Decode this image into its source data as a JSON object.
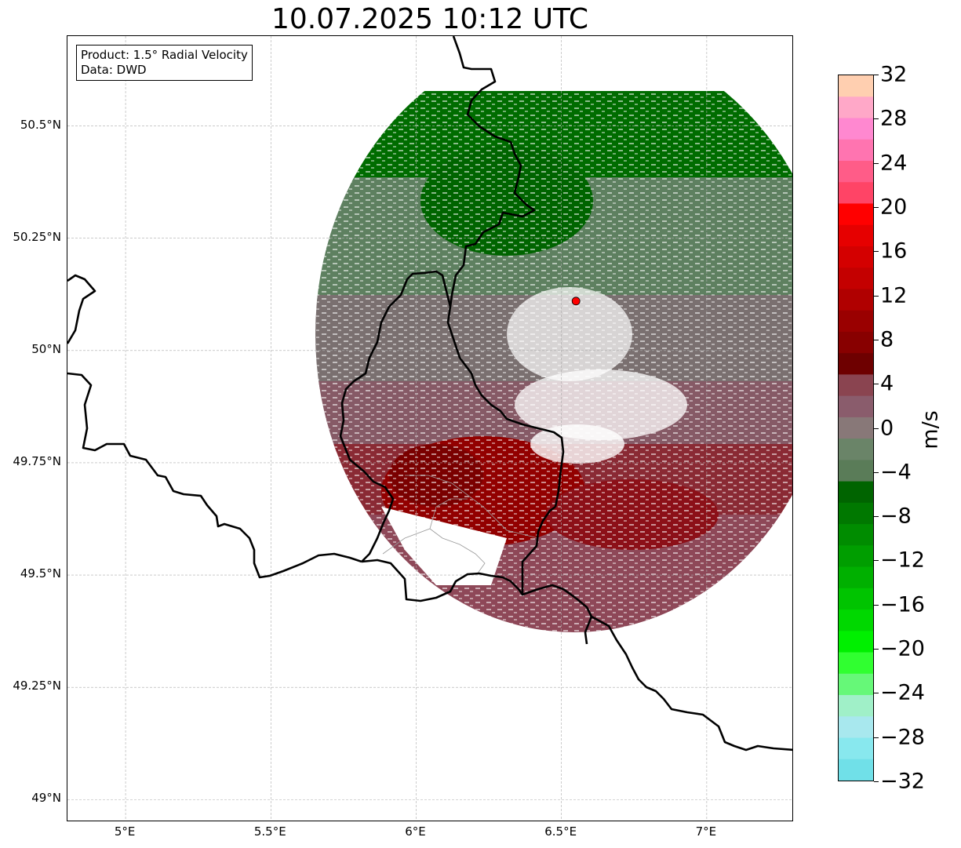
{
  "title": "10.07.2025 10:12 UTC",
  "info": {
    "product": "Product: 1.5° Radial Velocity",
    "source": "Data: DWD"
  },
  "map": {
    "lon_range": [
      4.8,
      7.3
    ],
    "lat_range": [
      48.95,
      50.7
    ],
    "lat_ticks": [
      {
        "value": 50.5,
        "label": "50.5°N"
      },
      {
        "value": 50.25,
        "label": "50.25°N"
      },
      {
        "value": 50.0,
        "label": "50°N"
      },
      {
        "value": 49.75,
        "label": "49.75°N"
      },
      {
        "value": 49.5,
        "label": "49.5°N"
      },
      {
        "value": 49.25,
        "label": "49.25°N"
      },
      {
        "value": 49.0,
        "label": "49°N"
      }
    ],
    "lon_ticks": [
      {
        "value": 5.0,
        "label": "5°E"
      },
      {
        "value": 5.5,
        "label": "5.5°E"
      },
      {
        "value": 6.0,
        "label": "6°E"
      },
      {
        "value": 6.5,
        "label": "6.5°E"
      },
      {
        "value": 7.0,
        "label": "7°E"
      }
    ],
    "radar_site": {
      "lon": 6.55,
      "lat": 50.11,
      "color": "#ff0000"
    },
    "radar_range_km": 120
  },
  "colorbar": {
    "unit": "m/s",
    "min": -32,
    "max": 32,
    "ticks": [
      {
        "value": 32,
        "label": "32"
      },
      {
        "value": 28,
        "label": "28"
      },
      {
        "value": 24,
        "label": "24"
      },
      {
        "value": 20,
        "label": "20"
      },
      {
        "value": 16,
        "label": "16"
      },
      {
        "value": 12,
        "label": "12"
      },
      {
        "value": 8,
        "label": "8"
      },
      {
        "value": 4,
        "label": "4"
      },
      {
        "value": 0,
        "label": "0"
      },
      {
        "value": -4,
        "label": "−4"
      },
      {
        "value": -8,
        "label": "−8"
      },
      {
        "value": -12,
        "label": "−12"
      },
      {
        "value": -16,
        "label": "−16"
      },
      {
        "value": -20,
        "label": "−20"
      },
      {
        "value": -24,
        "label": "−24"
      },
      {
        "value": -28,
        "label": "−28"
      },
      {
        "value": -32,
        "label": "−32"
      }
    ],
    "colors_top_to_bottom": [
      "#ffcfb0",
      "#ffa8c8",
      "#ff88d0",
      "#ff74b0",
      "#ff5c88",
      "#ff4466",
      "#ff0000",
      "#e60000",
      "#d40000",
      "#c40000",
      "#b00000",
      "#9a0000",
      "#880000",
      "#6e0000",
      "#8a4450",
      "#8a5c6c",
      "#887878",
      "#6a8468",
      "#5a7c58",
      "#006400",
      "#007800",
      "#008c00",
      "#009e00",
      "#00b000",
      "#00c400",
      "#00d800",
      "#00f000",
      "#30ff30",
      "#66f878",
      "#a0f0c8",
      "#a8e8ee",
      "#88e8ee",
      "#70e0e8"
    ]
  }
}
